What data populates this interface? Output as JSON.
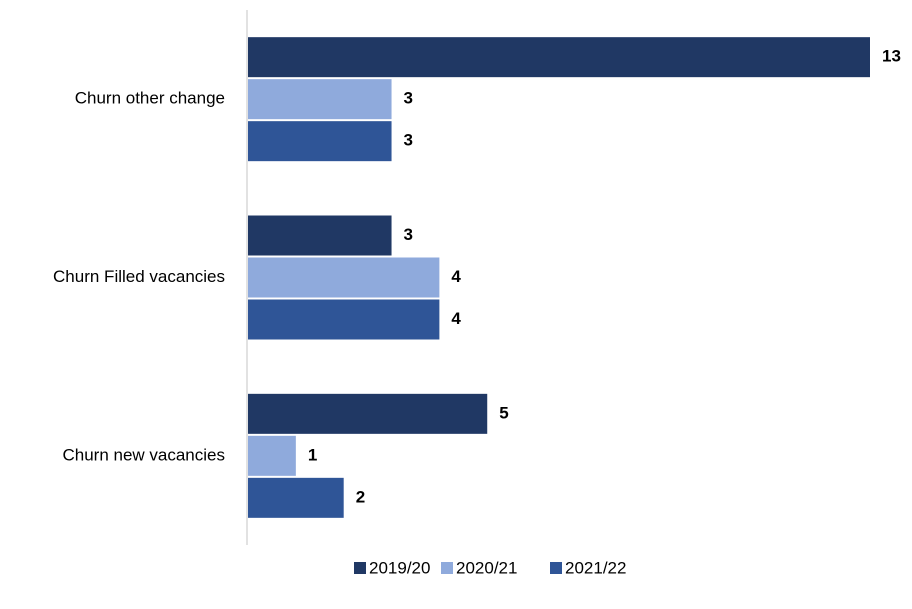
{
  "chart_data": {
    "type": "hbar",
    "categories": [
      "Churn other change",
      "Churn Filled vacancies",
      "Churn new vacancies"
    ],
    "series": [
      {
        "name": "2019/20",
        "color": "#203864",
        "values": [
          13,
          3,
          5
        ]
      },
      {
        "name": "2020/21",
        "color": "#8faadc",
        "values": [
          3,
          4,
          1
        ]
      },
      {
        "name": "2021/22",
        "color": "#2f5597",
        "values": [
          3,
          4,
          2
        ]
      }
    ],
    "xlim": [
      0,
      13
    ],
    "legend": "bottom"
  }
}
